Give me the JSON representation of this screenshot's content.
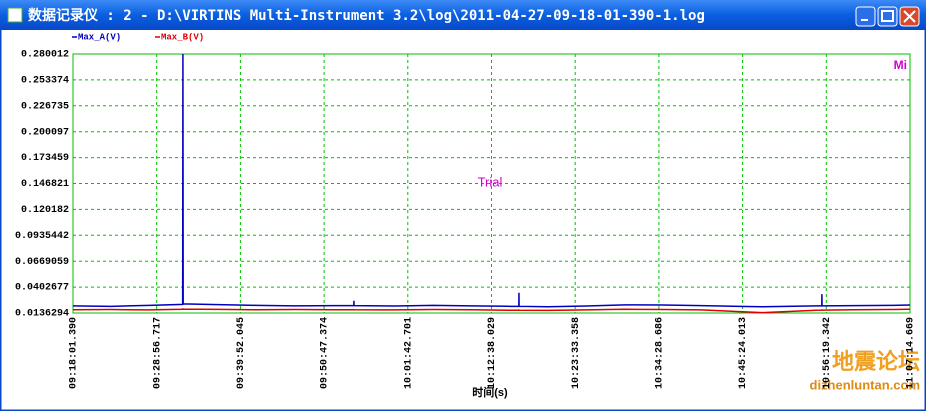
{
  "window": {
    "title": "数据记录仪 : 2 - D:\\VIRTINS Multi-Instrument 3.2\\log\\2011-04-27-09-18-01-390-1.log"
  },
  "chart_data": {
    "type": "line",
    "xlabel": "时间(s)",
    "annotations": [
      "Trial",
      "Mi"
    ],
    "x": [
      "09:18:01",
      "09:23:00",
      "09:28:00",
      "09:32:20",
      "09:32:22",
      "09:32:24",
      "09:37:00",
      "09:42:00",
      "09:47:00",
      "09:52:00",
      "09:54:40",
      "09:54:41",
      "09:54:42",
      "10:00:00",
      "10:05:00",
      "10:10:00",
      "10:15:00",
      "10:16:12",
      "10:16:13",
      "10:16:14",
      "10:20:00",
      "10:25:00",
      "10:30:00",
      "10:35:00",
      "10:40:00",
      "10:45:00",
      "10:48:00",
      "10:51:00",
      "10:55:00",
      "10:55:44",
      "10:55:45",
      "10:55:46",
      "11:00:00",
      "11:05:00",
      "11:07:14"
    ],
    "series": [
      {
        "name": "Max_A(V)",
        "color": "#0000c0",
        "values": [
          0.021,
          0.0205,
          0.0215,
          0.0225,
          0.280012,
          0.023,
          0.0222,
          0.0215,
          0.021,
          0.0212,
          0.0212,
          0.0262,
          0.0212,
          0.0208,
          0.0215,
          0.021,
          0.0205,
          0.0205,
          0.0345,
          0.0205,
          0.02,
          0.0208,
          0.022,
          0.0218,
          0.0212,
          0.0205,
          0.02,
          0.0205,
          0.021,
          0.021,
          0.033,
          0.021,
          0.0212,
          0.0215,
          0.0218
        ]
      },
      {
        "name": "Max_B(V)",
        "color": "#e00000",
        "values": [
          0.017,
          0.0172,
          0.0168,
          0.0175,
          0.0178,
          0.0176,
          0.0174,
          0.017,
          0.0172,
          0.017,
          0.017,
          0.0171,
          0.017,
          0.0168,
          0.0172,
          0.017,
          0.0165,
          0.0165,
          0.0166,
          0.0165,
          0.0163,
          0.0168,
          0.0175,
          0.0172,
          0.0168,
          0.015,
          0.014,
          0.015,
          0.0165,
          0.0166,
          0.0167,
          0.0166,
          0.017,
          0.0172,
          0.0175
        ]
      }
    ],
    "xlim": [
      "09:18:01.390",
      "11:07:14.669"
    ],
    "xticks": [
      "09:18:01.390",
      "09:28:56.717",
      "09:39:52.045",
      "09:50:47.374",
      "10:01:42.701",
      "10:12:38.029",
      "10:23:33.358",
      "10:34:28.686",
      "10:45:24.013",
      "10:56:19.342",
      "11:07:14.669"
    ],
    "ylim": [
      0.0136294,
      0.280012
    ],
    "yticks": [
      0.0136294,
      0.0402677,
      0.0669059,
      0.0935442,
      0.120182,
      0.146821,
      0.173459,
      0.200097,
      0.226735,
      0.253374,
      0.280012
    ],
    "grid": true
  },
  "watermark": {
    "title": "地震论坛",
    "url": "dizhenluntan.com"
  }
}
